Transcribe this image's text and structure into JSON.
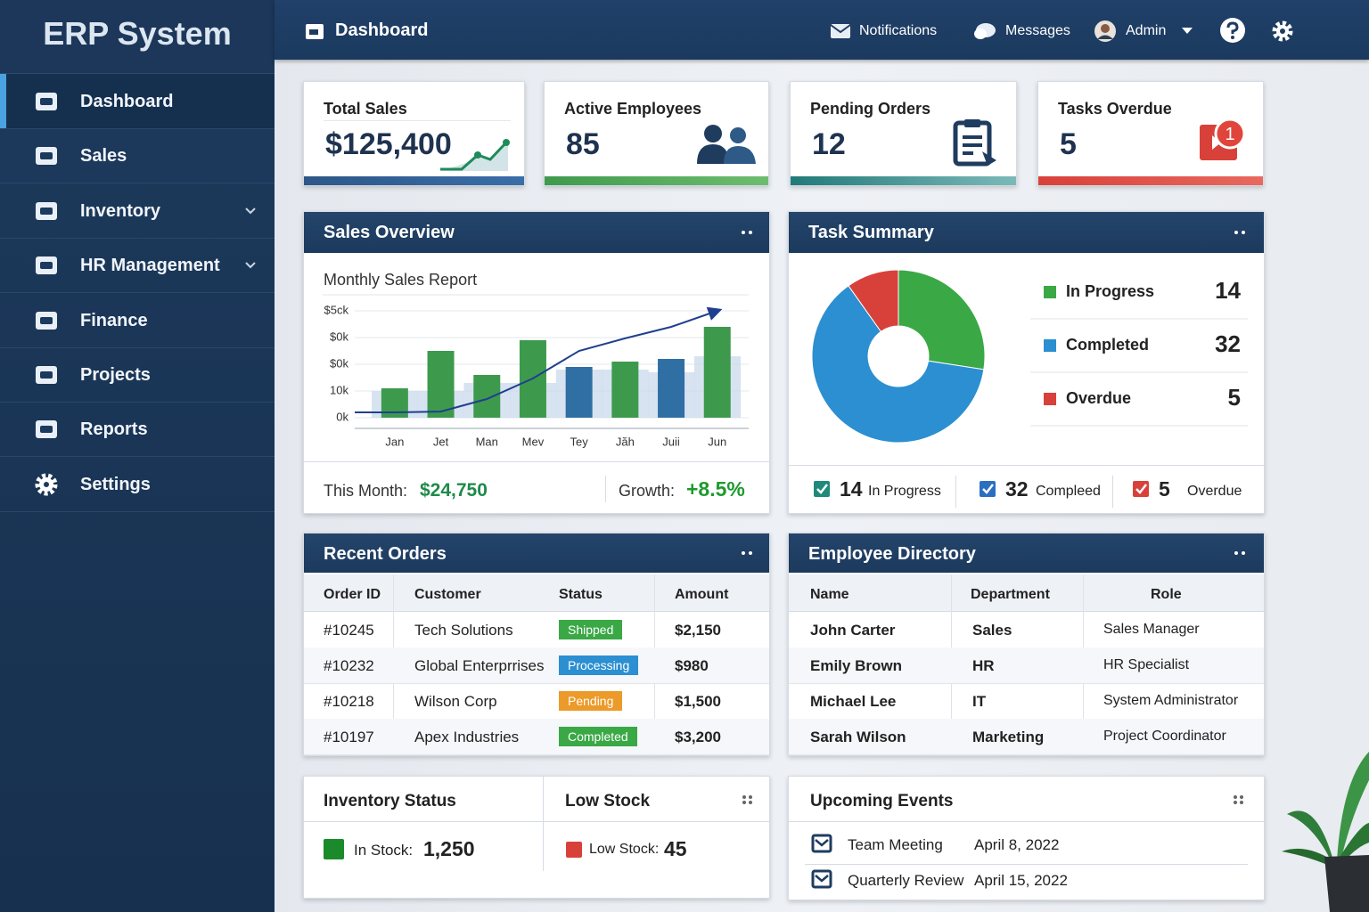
{
  "sidebar": {
    "brand": "ERP System",
    "items": [
      "Dashboard",
      "Sales",
      "Inventory",
      "HR Management",
      "Finance",
      "Projects",
      "Reports",
      "Settings"
    ]
  },
  "header": {
    "page": "Dashboard",
    "notifications": "Notifications",
    "messages": "Messages",
    "user": "Admin"
  },
  "kpis": [
    {
      "label": "Total Sales",
      "value": "$125,400"
    },
    {
      "label": "Active Employees",
      "value": "85"
    },
    {
      "label": "Pending Orders",
      "value": "12"
    },
    {
      "label": "Tasks Overdue",
      "value": "5",
      "badge": "1"
    }
  ],
  "sales_overview": {
    "title": "Sales Overview",
    "this_month_label": "This Month:",
    "this_month": "$24,750",
    "growth_label": "Growth:",
    "growth": "+8.5%"
  },
  "chart_data": [
    {
      "type": "bar",
      "title": "Monthly Sales Report",
      "categories": [
        "Jan",
        "Jet",
        "Man",
        "Mev",
        "Tey",
        "Jăh",
        "Juii",
        "Jun"
      ],
      "values": [
        11,
        25,
        16,
        29,
        19,
        21,
        22,
        34
      ],
      "colors": [
        "#3d9a4d",
        "#3d9a4d",
        "#3d9a4d",
        "#3d9a4d",
        "#2f6fa3",
        "#3d9a4d",
        "#2f6fa3",
        "#3d9a4d"
      ],
      "background": {
        "color": "#cddcec",
        "values": [
          10,
          10,
          13,
          13,
          18,
          18,
          17,
          23
        ]
      },
      "trend": {
        "color": "#1f3f8f",
        "values": [
          2,
          2.3,
          7,
          14.7,
          25,
          29.7,
          34,
          40
        ]
      },
      "ylim": [
        -4,
        44
      ],
      "yticks": [
        {
          "value": 0,
          "label": "0k"
        },
        {
          "value": 10,
          "label": "10k"
        },
        {
          "value": 20,
          "label": "$0k"
        },
        {
          "value": 30,
          "label": "$0k"
        },
        {
          "value": 40,
          "label": "$5ck"
        }
      ],
      "grid": true
    },
    {
      "type": "pie",
      "title": "Task Summary",
      "donut": true,
      "categories": [
        "In Progress",
        "Completed",
        "Overdue"
      ],
      "values": [
        14,
        32,
        5
      ],
      "colors": [
        "#3aa845",
        "#2b8fd1",
        "#d8413a"
      ]
    }
  ],
  "task_footer": [
    "In Progress",
    "Compleed",
    "Overdue"
  ],
  "recent_orders": {
    "title": "Recent Orders",
    "columns": [
      "Order ID",
      "Customer",
      "Status",
      "Amount"
    ],
    "rows": [
      [
        "#10245",
        "Tech Solutions",
        "Shipped",
        "$2,150"
      ],
      [
        "#10232",
        "Global Enterprrises",
        "Processing",
        "$980"
      ],
      [
        "#10218",
        "Wilson Corp",
        "Pending",
        "$1,500"
      ],
      [
        "#10197",
        "Apex Industries",
        "Completed",
        "$3,200"
      ]
    ],
    "status_colors": [
      "#3aa845",
      "#2b8fd1",
      "#ec9a2a",
      "#3aa845"
    ]
  },
  "employee_directory": {
    "title": "Employee Directory",
    "columns": [
      "Name",
      "Department",
      "Role"
    ],
    "rows": [
      [
        "John Carter",
        "Sales",
        "Sales Manager"
      ],
      [
        "Emily Brown",
        "HR",
        "HR Specialist"
      ],
      [
        "Michael Lee",
        "IT",
        "System Administrator"
      ],
      [
        "Sarah Wilson",
        "Marketing",
        "Project Coordinator"
      ]
    ]
  },
  "inventory": {
    "title": "Inventory Status",
    "low_title": "Low Stock",
    "in_stock_label": "In Stock:",
    "in_stock": "1,250",
    "low_stock_label": "Low Stock:",
    "low_stock": "45"
  },
  "events": {
    "title": "Upcoming Events",
    "items": [
      {
        "name": "Team Meeting",
        "date": "April 8, 2022"
      },
      {
        "name": "Quarterly Review",
        "date": "April 15, 2022"
      }
    ]
  }
}
